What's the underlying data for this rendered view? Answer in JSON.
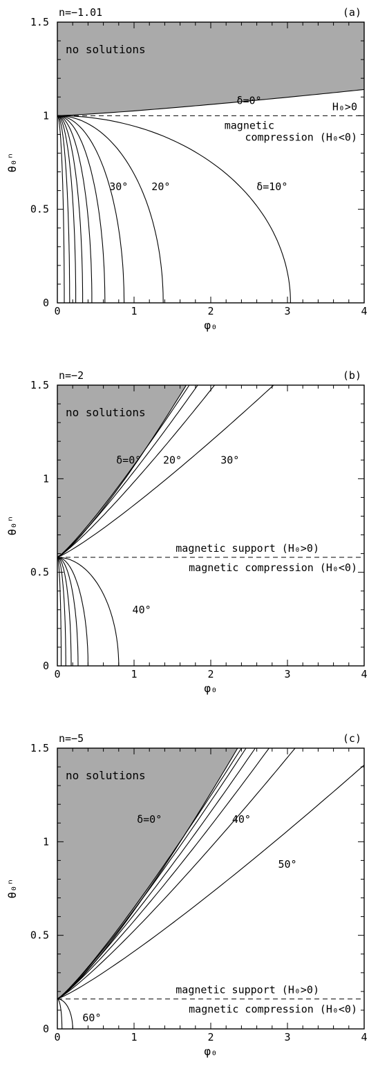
{
  "chart_data": [
    {
      "type": "line",
      "panel_id": "a",
      "panel_label": "(a)",
      "n_label": "n=−1.01",
      "xlabel": "φ₀",
      "ylabel": "θ₀ⁿ",
      "xlim": [
        0,
        4
      ],
      "ylim": [
        0,
        1.5
      ],
      "x_ticks": [
        "0",
        "1",
        "2",
        "3",
        "4"
      ],
      "y_ticks": [
        "0",
        "0.5",
        "1",
        "1.5"
      ],
      "shade_color": "#aaaaaa",
      "no_solutions_text": "no solutions",
      "dividing_line_y": 1.0,
      "region_labels": [
        "H₀>0",
        "magnetic",
        "compression (H₀<0)"
      ],
      "boundary": {
        "name": "δ=0°",
        "start": [
          0,
          1.0
        ],
        "end": [
          4,
          1.14
        ]
      },
      "upper_curves": [],
      "lower_curves": [
        {
          "y0": 1.0,
          "x_max": 3.04
        },
        {
          "y0": 1.0,
          "x_max": 1.38
        },
        {
          "y0": 1.0,
          "x_max": 0.87
        },
        {
          "y0": 1.0,
          "x_max": 0.62
        },
        {
          "y0": 1.0,
          "x_max": 0.45
        },
        {
          "y0": 1.0,
          "x_max": 0.33
        },
        {
          "y0": 1.0,
          "x_max": 0.24
        },
        {
          "y0": 1.0,
          "x_max": 0.16
        },
        {
          "y0": 1.0,
          "x_max": 0.09
        }
      ],
      "annotations": [
        {
          "text": "δ=0°",
          "x": 2.5,
          "y": 1.08
        },
        {
          "text": "δ=10°",
          "x": 2.8,
          "y": 0.62
        },
        {
          "text": "20°",
          "x": 1.35,
          "y": 0.62
        },
        {
          "text": "30°",
          "x": 0.8,
          "y": 0.62
        }
      ]
    },
    {
      "type": "line",
      "panel_id": "b",
      "panel_label": "(b)",
      "n_label": "n=−2",
      "xlabel": "φ₀",
      "ylabel": "θ₀ⁿ",
      "xlim": [
        0,
        4
      ],
      "ylim": [
        0,
        1.5
      ],
      "x_ticks": [
        "0",
        "1",
        "2",
        "3",
        "4"
      ],
      "y_ticks": [
        "0",
        "0.5",
        "1",
        "1.5"
      ],
      "shade_color": "#aaaaaa",
      "no_solutions_text": "no solutions",
      "dividing_line_y": 0.58,
      "region_labels": [
        "magnetic support (H₀>0)",
        "magnetic compression (H₀<0)"
      ],
      "boundary": {
        "name": "δ=0°",
        "start": [
          0,
          0.58
        ],
        "end": [
          1.68,
          1.5
        ]
      },
      "upper_curves": [
        {
          "x_end": 1.72
        },
        {
          "x_end": 1.83
        },
        {
          "x_end": 2.05
        },
        {
          "x_end": 2.82
        }
      ],
      "lower_curves": [
        {
          "y0": 0.58,
          "x_max": 0.8
        },
        {
          "y0": 0.58,
          "x_max": 0.4
        },
        {
          "y0": 0.58,
          "x_max": 0.27
        },
        {
          "y0": 0.58,
          "x_max": 0.18
        },
        {
          "y0": 0.58,
          "x_max": 0.11
        },
        {
          "y0": 0.58,
          "x_max": 0.05
        }
      ],
      "annotations": [
        {
          "text": "δ=0°",
          "x": 0.93,
          "y": 1.1
        },
        {
          "text": "20°",
          "x": 1.5,
          "y": 1.1
        },
        {
          "text": "30°",
          "x": 2.25,
          "y": 1.1
        },
        {
          "text": "40°",
          "x": 1.1,
          "y": 0.3
        }
      ]
    },
    {
      "type": "line",
      "panel_id": "c",
      "panel_label": "(c)",
      "n_label": "n=−5",
      "xlabel": "φ₀",
      "ylabel": "θ₀ⁿ",
      "xlim": [
        0,
        4
      ],
      "ylim": [
        0,
        1.5
      ],
      "x_ticks": [
        "0",
        "1",
        "2",
        "3",
        "4"
      ],
      "y_ticks": [
        "0",
        "0.5",
        "1",
        "1.5"
      ],
      "shade_color": "#aaaaaa",
      "no_solutions_text": "no solutions",
      "dividing_line_y": 0.16,
      "region_labels": [
        "magnetic support (H₀>0)",
        "magnetic compression (H₀<0)"
      ],
      "boundary": {
        "name": "δ=0°",
        "start": [
          0,
          0.16
        ],
        "end": [
          2.35,
          1.5
        ]
      },
      "upper_curves": [
        {
          "x_end": 2.4
        },
        {
          "x_end": 2.46
        },
        {
          "x_end": 2.58
        },
        {
          "x_end": 2.76
        },
        {
          "x_end": 3.1
        },
        {
          "x_end": 4.0,
          "y_end": 1.41
        }
      ],
      "lower_curves": [
        {
          "y0": 0.16,
          "x_max": 0.2
        },
        {
          "y0": 0.16,
          "x_max": 0.06
        }
      ],
      "annotations": [
        {
          "text": "δ=0°",
          "x": 1.2,
          "y": 1.12
        },
        {
          "text": "40°",
          "x": 2.4,
          "y": 1.12
        },
        {
          "text": "50°",
          "x": 3.0,
          "y": 0.88
        },
        {
          "text": "60°",
          "x": 0.45,
          "y": 0.06
        }
      ]
    }
  ]
}
